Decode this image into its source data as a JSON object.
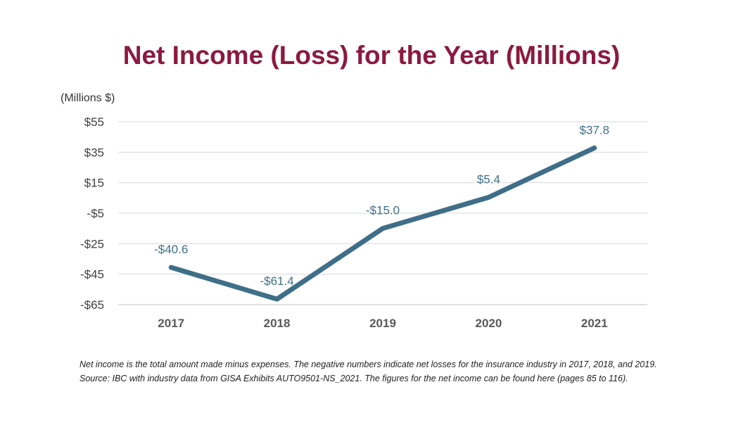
{
  "chart_data": {
    "type": "line",
    "title": "Net Income (Loss) for the Year (Millions)",
    "ylabel": "(Millions $)",
    "xlabel": "",
    "categories": [
      "2017",
      "2018",
      "2019",
      "2020",
      "2021"
    ],
    "series": [
      {
        "values": [
          -40.6,
          -61.4,
          -15.0,
          5.4,
          37.8
        ]
      }
    ],
    "data_labels": [
      "-$40.6",
      "-$61.4",
      "-$15.0",
      "$5.4",
      "$37.8"
    ],
    "y_ticks": [
      55,
      35,
      15,
      -5,
      -25,
      -45,
      -65
    ],
    "y_tick_labels": [
      "$55",
      "$35",
      "$15",
      "-$5",
      "-$25",
      "-$45",
      "-$65"
    ],
    "ylim": [
      -65,
      55
    ],
    "grid": true,
    "legend": "none",
    "line_color": "#3f6f88",
    "title_color": "#8b1a3f"
  },
  "footnote": {
    "line1": "Net income is the total amount made minus expenses. The negative numbers indicate net losses for the insurance industry in 2017,  2018,  and 2019.",
    "line2": "Source: IBC with industry data from GISA Exhibits AUTO9501-NS_2021.  The figures for the net income can be found here (pages 85 to 116)."
  }
}
